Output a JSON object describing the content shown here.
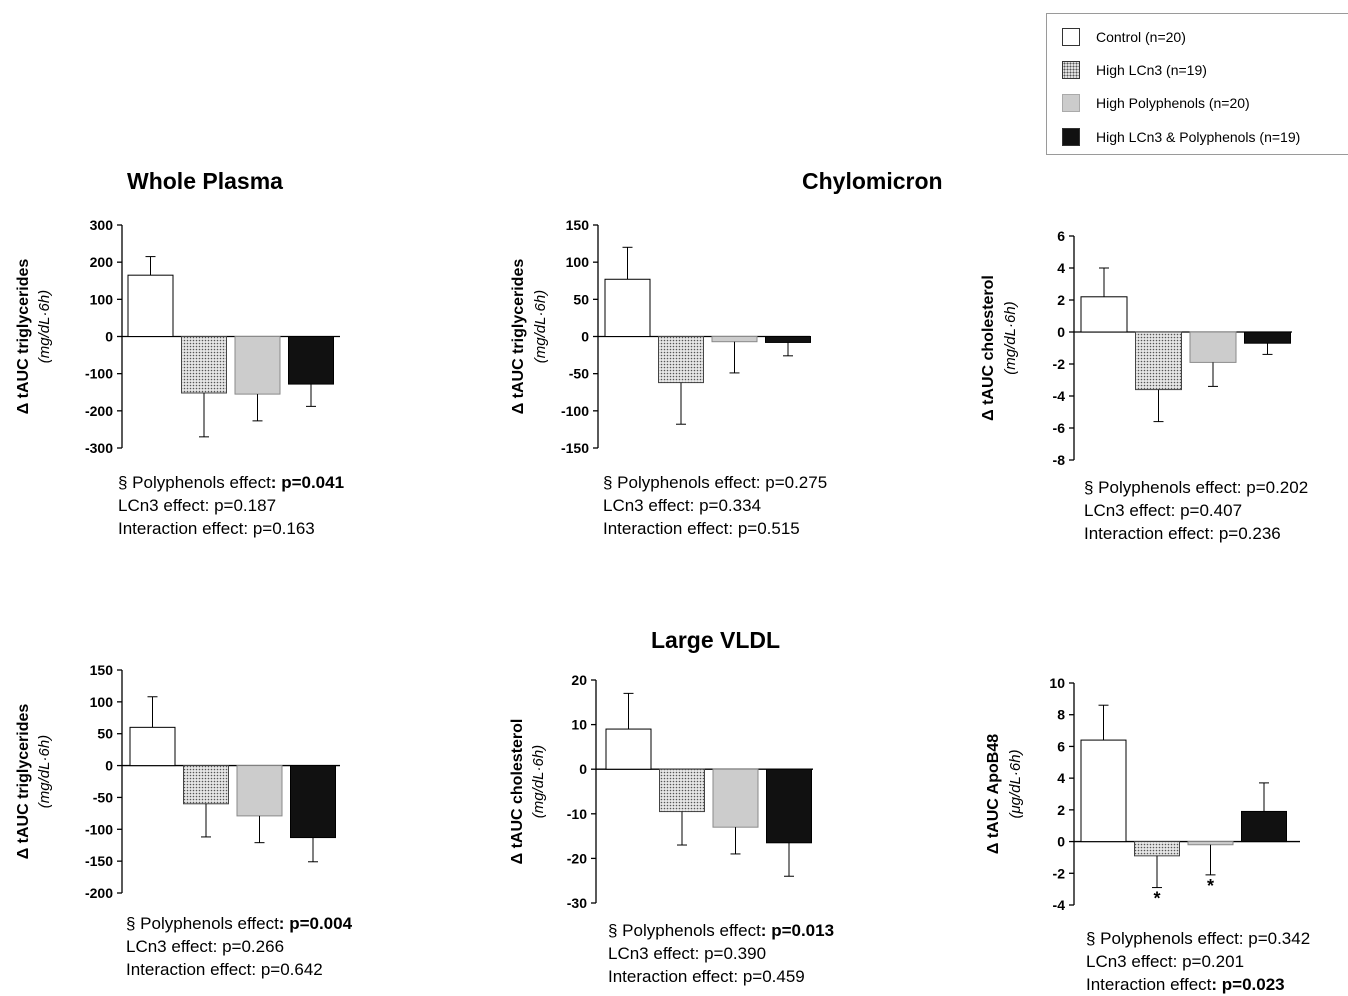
{
  "legend": {
    "items": [
      {
        "label": "Control (n=20)",
        "pattern": "white"
      },
      {
        "label": "High LCn3 (n=19)",
        "pattern": "dotted"
      },
      {
        "label": "High Polyphenols (n=20)",
        "pattern": "grey"
      },
      {
        "label": "High LCn3 & Polyphenols (n=19)",
        "pattern": "black"
      }
    ]
  },
  "sections": {
    "whole_plasma": "Whole Plasma",
    "chylomicron": "Chylomicron",
    "large_vldl": "Large VLDL"
  },
  "colors": {
    "white": "#ffffff",
    "dotted_bg": "#e6e6e6",
    "dotted_dot": "#555555",
    "grey": "#cccccc",
    "black": "#111111"
  },
  "chart_data": [
    {
      "type": "bar",
      "group": "Whole Plasma",
      "ylabel": "Δ tAUC triglycerides",
      "yunit": "(mg/dL·6h)",
      "ylim": [
        -300,
        300
      ],
      "yticks": [
        "300",
        "200",
        "100",
        "0",
        "-100",
        "-200",
        "-300"
      ],
      "categories": [
        "Control (n=20)",
        "High LCn3 (n=19)",
        "High Polyphenols (n=20)",
        "High LCn3 & Polyphenols (n=19)"
      ],
      "values": [
        165,
        -152,
        -155,
        -128
      ],
      "errors": [
        50,
        118,
        72,
        60
      ],
      "markers": [
        "",
        "",
        "",
        ""
      ],
      "stats": [
        {
          "label": "§ Polyphenols effect",
          "sep": ": ",
          "value": "p=0.041",
          "bold": true
        },
        {
          "label": "LCn3 effect",
          "sep": ": ",
          "value": "p=0.187",
          "bold": false
        },
        {
          "label": "Interaction effect",
          "sep": ": ",
          "value": "p=0.163",
          "bold": false
        }
      ]
    },
    {
      "type": "bar",
      "group": "Chylomicron",
      "ylabel": "Δ tAUC triglycerides",
      "yunit": "(mg/dL·6h)",
      "ylim": [
        -150,
        150
      ],
      "yticks": [
        "150",
        "100",
        "50",
        "0",
        "-50",
        "-100",
        "-150"
      ],
      "categories": [
        "Control (n=20)",
        "High LCn3 (n=19)",
        "High Polyphenols (n=20)",
        "High LCn3 & Polyphenols (n=19)"
      ],
      "values": [
        77,
        -62,
        -7,
        -8
      ],
      "errors": [
        43,
        56,
        42,
        18
      ],
      "markers": [
        "",
        "",
        "",
        ""
      ],
      "stats": [
        {
          "label": "§ Polyphenols effect",
          "sep": ": ",
          "value": "p=0.275",
          "bold": false
        },
        {
          "label": "LCn3 effect",
          "sep": ": ",
          "value": "p=0.334",
          "bold": false
        },
        {
          "label": "Interaction effect",
          "sep": ": ",
          "value": "p=0.515",
          "bold": false
        }
      ]
    },
    {
      "type": "bar",
      "group": "Chylomicron",
      "ylabel": "Δ tAUC cholesterol",
      "yunit": "(mg/dL·6h)",
      "ylim": [
        -8,
        6
      ],
      "yticks": [
        "6",
        "4",
        "2",
        "0",
        "-2",
        "-4",
        "-6",
        "-8"
      ],
      "categories": [
        "Control (n=20)",
        "High LCn3 (n=19)",
        "High Polyphenols (n=20)",
        "High LCn3 & Polyphenols (n=19)"
      ],
      "values": [
        2.2,
        -3.6,
        -1.9,
        -0.7
      ],
      "errors": [
        1.8,
        2.0,
        1.5,
        0.7
      ],
      "markers": [
        "",
        "",
        "",
        ""
      ],
      "stats": [
        {
          "label": "§ Polyphenols effect",
          "sep": ": ",
          "value": "p=0.202",
          "bold": false
        },
        {
          "label": "LCn3 effect",
          "sep": ": ",
          "value": "p=0.407",
          "bold": false
        },
        {
          "label": "Interaction effect",
          "sep": ": ",
          "value": "p=0.236",
          "bold": false
        }
      ]
    },
    {
      "type": "bar",
      "group": "Large VLDL",
      "ylabel": "Δ tAUC triglycerides",
      "yunit": "(mg/dL·6h)",
      "ylim": [
        -200,
        150
      ],
      "yticks": [
        "150",
        "100",
        "50",
        "0",
        "-50",
        "-100",
        "-150",
        "-200"
      ],
      "categories": [
        "Control (n=20)",
        "High LCn3 (n=19)",
        "High Polyphenols (n=20)",
        "High LCn3 & Polyphenols (n=19)"
      ],
      "values": [
        60,
        -60,
        -79,
        -113
      ],
      "errors": [
        48,
        52,
        42,
        38
      ],
      "markers": [
        "",
        "",
        "",
        ""
      ],
      "stats": [
        {
          "label": "§ Polyphenols effect",
          "sep": ": ",
          "value": "p=0.004",
          "bold": true
        },
        {
          "label": "LCn3 effect",
          "sep": ": ",
          "value": "p=0.266",
          "bold": false
        },
        {
          "label": "Interaction effect",
          "sep": ": ",
          "value": "p=0.642",
          "bold": false
        }
      ]
    },
    {
      "type": "bar",
      "group": "Large VLDL",
      "ylabel": "Δ tAUC cholesterol",
      "yunit": "(mg/dL·6h)",
      "ylim": [
        -30,
        20
      ],
      "yticks": [
        "20",
        "10",
        "0",
        "-10",
        "-20",
        "-30"
      ],
      "categories": [
        "Control (n=20)",
        "High LCn3 (n=19)",
        "High Polyphenols (n=20)",
        "High LCn3 & Polyphenols (n=19)"
      ],
      "values": [
        9,
        -9.5,
        -13,
        -16.5
      ],
      "errors": [
        8,
        7.5,
        6,
        7.5
      ],
      "markers": [
        "",
        "",
        "",
        ""
      ],
      "stats": [
        {
          "label": "§ Polyphenols effect",
          "sep": ": ",
          "value": "p=0.013",
          "bold": true
        },
        {
          "label": "LCn3 effect",
          "sep": ": ",
          "value": "p=0.390",
          "bold": false
        },
        {
          "label": "Interaction effect",
          "sep": ": ",
          "value": "p=0.459",
          "bold": false
        }
      ]
    },
    {
      "type": "bar",
      "group": "Large VLDL",
      "ylabel": "Δ tAUC ApoB48",
      "yunit": "(μg/dL·6h)",
      "ylim": [
        -4,
        10
      ],
      "yticks": [
        "10",
        "8",
        "6",
        "4",
        "2",
        "0",
        "-2",
        "-4"
      ],
      "categories": [
        "Control (n=20)",
        "High LCn3 (n=19)",
        "High Polyphenols (n=20)",
        "High LCn3 & Polyphenols (n=19)"
      ],
      "values": [
        6.4,
        -0.9,
        -0.2,
        1.9
      ],
      "errors": [
        2.2,
        2.0,
        1.9,
        1.8
      ],
      "markers": [
        "",
        "*",
        "*",
        ""
      ],
      "stats": [
        {
          "label": "§ Polyphenols effect",
          "sep": ": ",
          "value": "p=0.342",
          "bold": false
        },
        {
          "label": "LCn3 effect",
          "sep": ": ",
          "value": "p=0.201",
          "bold": false
        },
        {
          "label": "Interaction effect",
          "sep": ": ",
          "value": "p=0.023",
          "bold": true
        }
      ]
    }
  ]
}
